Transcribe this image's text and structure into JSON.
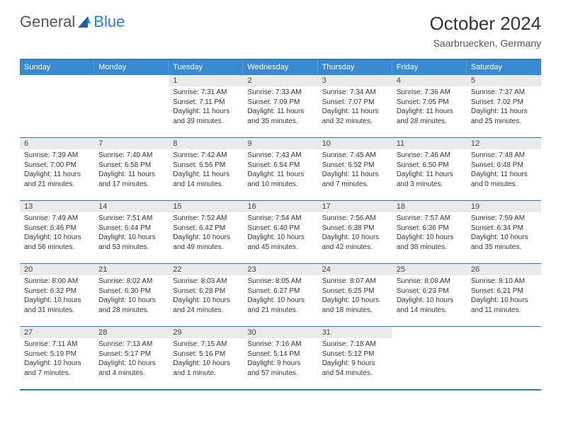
{
  "logo": {
    "general": "General",
    "blue": "Blue"
  },
  "title": "October 2024",
  "location": "Saarbruecken, Germany",
  "colors": {
    "header_bg": "#3a8ad0",
    "border": "#2a7bd3",
    "daynum_bg": "#eaeaea",
    "text": "#333333"
  },
  "weekdays": [
    "Sunday",
    "Monday",
    "Tuesday",
    "Wednesday",
    "Thursday",
    "Friday",
    "Saturday"
  ],
  "weeks": [
    [
      {
        "num": "",
        "sunrise": "",
        "sunset": "",
        "daylight": ""
      },
      {
        "num": "",
        "sunrise": "",
        "sunset": "",
        "daylight": ""
      },
      {
        "num": "1",
        "sunrise": "Sunrise: 7:31 AM",
        "sunset": "Sunset: 7:11 PM",
        "daylight": "Daylight: 11 hours and 39 minutes."
      },
      {
        "num": "2",
        "sunrise": "Sunrise: 7:33 AM",
        "sunset": "Sunset: 7:09 PM",
        "daylight": "Daylight: 11 hours and 35 minutes."
      },
      {
        "num": "3",
        "sunrise": "Sunrise: 7:34 AM",
        "sunset": "Sunset: 7:07 PM",
        "daylight": "Daylight: 11 hours and 32 minutes."
      },
      {
        "num": "4",
        "sunrise": "Sunrise: 7:36 AM",
        "sunset": "Sunset: 7:05 PM",
        "daylight": "Daylight: 11 hours and 28 minutes."
      },
      {
        "num": "5",
        "sunrise": "Sunrise: 7:37 AM",
        "sunset": "Sunset: 7:02 PM",
        "daylight": "Daylight: 11 hours and 25 minutes."
      }
    ],
    [
      {
        "num": "6",
        "sunrise": "Sunrise: 7:39 AM",
        "sunset": "Sunset: 7:00 PM",
        "daylight": "Daylight: 11 hours and 21 minutes."
      },
      {
        "num": "7",
        "sunrise": "Sunrise: 7:40 AM",
        "sunset": "Sunset: 6:58 PM",
        "daylight": "Daylight: 11 hours and 17 minutes."
      },
      {
        "num": "8",
        "sunrise": "Sunrise: 7:42 AM",
        "sunset": "Sunset: 6:56 PM",
        "daylight": "Daylight: 11 hours and 14 minutes."
      },
      {
        "num": "9",
        "sunrise": "Sunrise: 7:43 AM",
        "sunset": "Sunset: 6:54 PM",
        "daylight": "Daylight: 11 hours and 10 minutes."
      },
      {
        "num": "10",
        "sunrise": "Sunrise: 7:45 AM",
        "sunset": "Sunset: 6:52 PM",
        "daylight": "Daylight: 11 hours and 7 minutes."
      },
      {
        "num": "11",
        "sunrise": "Sunrise: 7:46 AM",
        "sunset": "Sunset: 6:50 PM",
        "daylight": "Daylight: 11 hours and 3 minutes."
      },
      {
        "num": "12",
        "sunrise": "Sunrise: 7:48 AM",
        "sunset": "Sunset: 6:48 PM",
        "daylight": "Daylight: 11 hours and 0 minutes."
      }
    ],
    [
      {
        "num": "13",
        "sunrise": "Sunrise: 7:49 AM",
        "sunset": "Sunset: 6:46 PM",
        "daylight": "Daylight: 10 hours and 56 minutes."
      },
      {
        "num": "14",
        "sunrise": "Sunrise: 7:51 AM",
        "sunset": "Sunset: 6:44 PM",
        "daylight": "Daylight: 10 hours and 53 minutes."
      },
      {
        "num": "15",
        "sunrise": "Sunrise: 7:52 AM",
        "sunset": "Sunset: 6:42 PM",
        "daylight": "Daylight: 10 hours and 49 minutes."
      },
      {
        "num": "16",
        "sunrise": "Sunrise: 7:54 AM",
        "sunset": "Sunset: 6:40 PM",
        "daylight": "Daylight: 10 hours and 45 minutes."
      },
      {
        "num": "17",
        "sunrise": "Sunrise: 7:56 AM",
        "sunset": "Sunset: 6:38 PM",
        "daylight": "Daylight: 10 hours and 42 minutes."
      },
      {
        "num": "18",
        "sunrise": "Sunrise: 7:57 AM",
        "sunset": "Sunset: 6:36 PM",
        "daylight": "Daylight: 10 hours and 38 minutes."
      },
      {
        "num": "19",
        "sunrise": "Sunrise: 7:59 AM",
        "sunset": "Sunset: 6:34 PM",
        "daylight": "Daylight: 10 hours and 35 minutes."
      }
    ],
    [
      {
        "num": "20",
        "sunrise": "Sunrise: 8:00 AM",
        "sunset": "Sunset: 6:32 PM",
        "daylight": "Daylight: 10 hours and 31 minutes."
      },
      {
        "num": "21",
        "sunrise": "Sunrise: 8:02 AM",
        "sunset": "Sunset: 6:30 PM",
        "daylight": "Daylight: 10 hours and 28 minutes."
      },
      {
        "num": "22",
        "sunrise": "Sunrise: 8:03 AM",
        "sunset": "Sunset: 6:28 PM",
        "daylight": "Daylight: 10 hours and 24 minutes."
      },
      {
        "num": "23",
        "sunrise": "Sunrise: 8:05 AM",
        "sunset": "Sunset: 6:27 PM",
        "daylight": "Daylight: 10 hours and 21 minutes."
      },
      {
        "num": "24",
        "sunrise": "Sunrise: 8:07 AM",
        "sunset": "Sunset: 6:25 PM",
        "daylight": "Daylight: 10 hours and 18 minutes."
      },
      {
        "num": "25",
        "sunrise": "Sunrise: 8:08 AM",
        "sunset": "Sunset: 6:23 PM",
        "daylight": "Daylight: 10 hours and 14 minutes."
      },
      {
        "num": "26",
        "sunrise": "Sunrise: 8:10 AM",
        "sunset": "Sunset: 6:21 PM",
        "daylight": "Daylight: 10 hours and 11 minutes."
      }
    ],
    [
      {
        "num": "27",
        "sunrise": "Sunrise: 7:11 AM",
        "sunset": "Sunset: 5:19 PM",
        "daylight": "Daylight: 10 hours and 7 minutes."
      },
      {
        "num": "28",
        "sunrise": "Sunrise: 7:13 AM",
        "sunset": "Sunset: 5:17 PM",
        "daylight": "Daylight: 10 hours and 4 minutes."
      },
      {
        "num": "29",
        "sunrise": "Sunrise: 7:15 AM",
        "sunset": "Sunset: 5:16 PM",
        "daylight": "Daylight: 10 hours and 1 minute."
      },
      {
        "num": "30",
        "sunrise": "Sunrise: 7:16 AM",
        "sunset": "Sunset: 5:14 PM",
        "daylight": "Daylight: 9 hours and 57 minutes."
      },
      {
        "num": "31",
        "sunrise": "Sunrise: 7:18 AM",
        "sunset": "Sunset: 5:12 PM",
        "daylight": "Daylight: 9 hours and 54 minutes."
      },
      {
        "num": "",
        "sunrise": "",
        "sunset": "",
        "daylight": ""
      },
      {
        "num": "",
        "sunrise": "",
        "sunset": "",
        "daylight": ""
      }
    ]
  ]
}
